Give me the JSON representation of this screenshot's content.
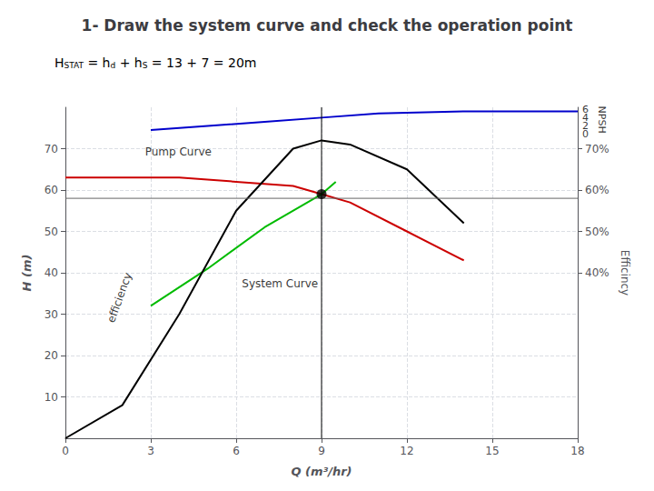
{
  "chart_data": {
    "type": "line",
    "title": "1- Draw the system curve and check the operation point",
    "subtitle": [
      {
        "text": "H",
        "style": "normal"
      },
      {
        "text": "STAT",
        "style": "sub"
      },
      {
        "text": " = h",
        "style": "normal"
      },
      {
        "text": "d",
        "style": "sub"
      },
      {
        "text": " + h",
        "style": "normal"
      },
      {
        "text": "S",
        "style": "sub"
      },
      {
        "text": " = 13 + 7 = 20m",
        "style": "normal"
      }
    ],
    "xlabel": "Q (m³/hr)",
    "ylabel": "H (m)",
    "y2label": "Efficincy",
    "xlim": [
      0,
      18
    ],
    "xticks": [
      0,
      3,
      6,
      9,
      12,
      15,
      18
    ],
    "ylim": [
      0,
      80
    ],
    "yticks": [
      10,
      20,
      30,
      40,
      50,
      60,
      70
    ],
    "y2lim": [
      0,
      80
    ],
    "y2ticks": [
      {
        "value": 40,
        "label": "40%"
      },
      {
        "value": 50,
        "label": "50%"
      },
      {
        "value": 60,
        "label": "60%"
      },
      {
        "value": 70,
        "label": "70%"
      }
    ],
    "grid": true,
    "series": [
      {
        "type": "line",
        "color": "#CC0000",
        "x": [
          0,
          2,
          4,
          6,
          8,
          9,
          10,
          12,
          14
        ],
        "values": [
          63,
          63,
          63,
          62,
          61,
          59,
          57,
          50,
          43
        ]
      },
      {
        "type": "line",
        "color": "#00BB00",
        "x": [
          3,
          5,
          7,
          9,
          9.5
        ],
        "values": [
          32,
          41,
          51,
          59,
          62
        ]
      },
      {
        "type": "line",
        "color": "#0000CC",
        "x": [
          3,
          5,
          7,
          9,
          11,
          14,
          18
        ],
        "values": [
          74.5,
          75.5,
          76.5,
          77.5,
          78.5,
          79,
          79
        ]
      },
      {
        "type": "line",
        "color": "#000000",
        "x": [
          0,
          2,
          4,
          6,
          8,
          9,
          10,
          12,
          14
        ],
        "values": [
          0,
          8,
          30,
          55,
          70,
          72,
          71,
          65,
          52
        ]
      },
      {
        "type": "hline",
        "color": "#666666",
        "values": [
          58
        ]
      },
      {
        "type": "vline",
        "color": "#000000",
        "x": [
          9
        ]
      },
      {
        "type": "scatter",
        "color": "#000000",
        "marker": "circle",
        "x": [
          9
        ],
        "values": [
          59
        ]
      }
    ],
    "annotations": [
      {
        "text": "Pump Curve",
        "x": 2.8,
        "y": 68
      },
      {
        "text": "System Curve",
        "x": 6.2,
        "y": 36
      },
      {
        "text": "efficiency",
        "x": 1.9,
        "y": 34
      },
      {
        "text": "0",
        "x": 18,
        "y": 73.5
      },
      {
        "text": "2",
        "x": 18,
        "y": 75.5
      },
      {
        "text": "4",
        "x": 18,
        "y": 77.5
      },
      {
        "text": "6",
        "x": 18,
        "y": 79.5
      },
      {
        "text": "NPSH",
        "x": 18,
        "y": 77
      }
    ]
  }
}
